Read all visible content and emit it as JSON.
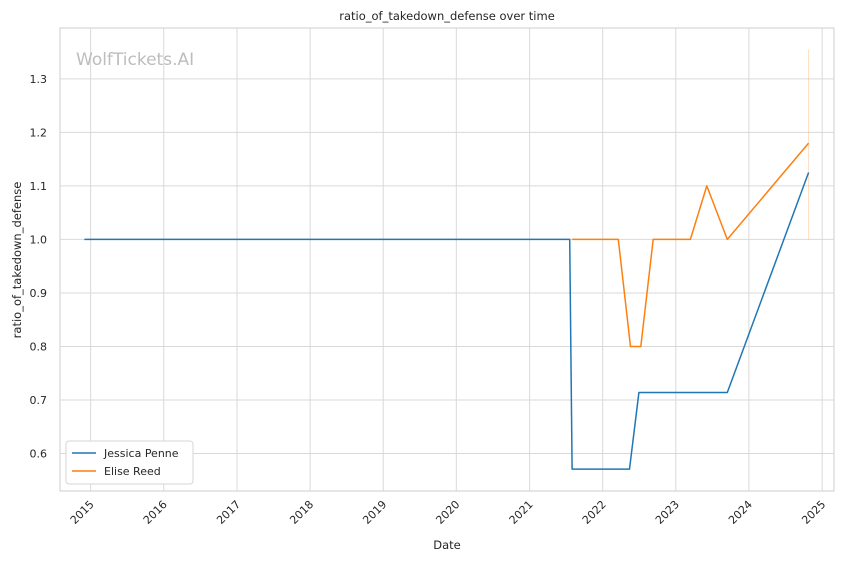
{
  "chart_data": {
    "type": "line",
    "title": "ratio_of_takedown_defense over time",
    "xlabel": "Date",
    "ylabel": "ratio_of_takedown_defense",
    "watermark": "WolfTickets.AI",
    "x_ticks": [
      "2015",
      "2016",
      "2017",
      "2018",
      "2019",
      "2020",
      "2021",
      "2022",
      "2023",
      "2024",
      "2025"
    ],
    "y_ticks": [
      "0.6",
      "0.7",
      "0.8",
      "0.9",
      "1.0",
      "1.1",
      "1.2",
      "1.3"
    ],
    "xlim": [
      "2014-08-01",
      "2025-03-01"
    ],
    "ylim": [
      0.53,
      1.395
    ],
    "grid": true,
    "legend_position": "lower-left",
    "series": [
      {
        "name": "Jessica Penne",
        "color": "#1f77b4",
        "points": [
          {
            "x": "2014-12-01",
            "y": 1.0
          },
          {
            "x": "2021-07-20",
            "y": 1.0
          },
          {
            "x": "2021-08-01",
            "y": 0.571
          },
          {
            "x": "2022-05-15",
            "y": 0.571
          },
          {
            "x": "2022-07-01",
            "y": 0.714
          },
          {
            "x": "2023-09-15",
            "y": 0.714
          },
          {
            "x": "2024-10-25",
            "y": 1.125
          }
        ]
      },
      {
        "name": "Elise Reed",
        "color": "#ff7f0e",
        "points": [
          {
            "x": "2021-08-01",
            "y": 1.0
          },
          {
            "x": "2022-03-20",
            "y": 1.0
          },
          {
            "x": "2022-05-20",
            "y": 0.8
          },
          {
            "x": "2022-07-10",
            "y": 0.8
          },
          {
            "x": "2022-09-10",
            "y": 1.0
          },
          {
            "x": "2023-03-15",
            "y": 1.0
          },
          {
            "x": "2023-06-05",
            "y": 1.1
          },
          {
            "x": "2023-09-15",
            "y": 1.0
          },
          {
            "x": "2024-10-25",
            "y": 1.18
          }
        ]
      }
    ],
    "error_band": {
      "x": "2024-10-25",
      "y_low": 1.0,
      "y_high": 1.355,
      "color": "#ff7f0e"
    }
  }
}
